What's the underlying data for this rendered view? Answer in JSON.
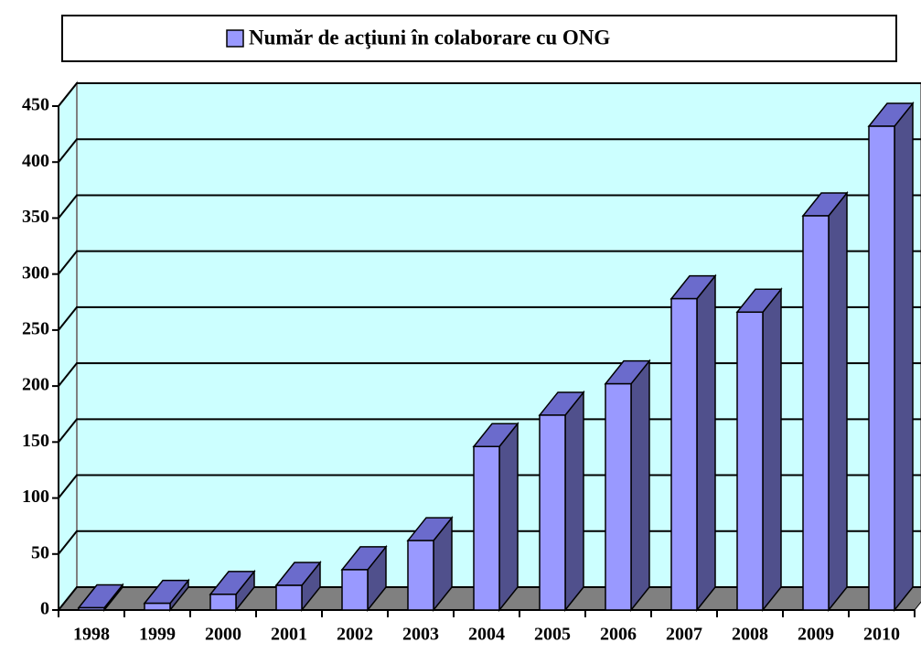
{
  "chart_data": {
    "type": "bar",
    "legend": "Număr de acţiuni în colaborare cu ONG",
    "categories": [
      "1998",
      "1999",
      "2000",
      "2001",
      "2002",
      "2003",
      "2004",
      "2005",
      "2006",
      "2007",
      "2008",
      "2009",
      "2010"
    ],
    "values": [
      2,
      6,
      14,
      22,
      36,
      62,
      146,
      174,
      202,
      278,
      266,
      352,
      432
    ],
    "color": "#9999ff",
    "ylim": [
      0,
      450
    ],
    "yticks": [
      0,
      50,
      100,
      150,
      200,
      250,
      300,
      350,
      400,
      450
    ],
    "grid": true
  }
}
